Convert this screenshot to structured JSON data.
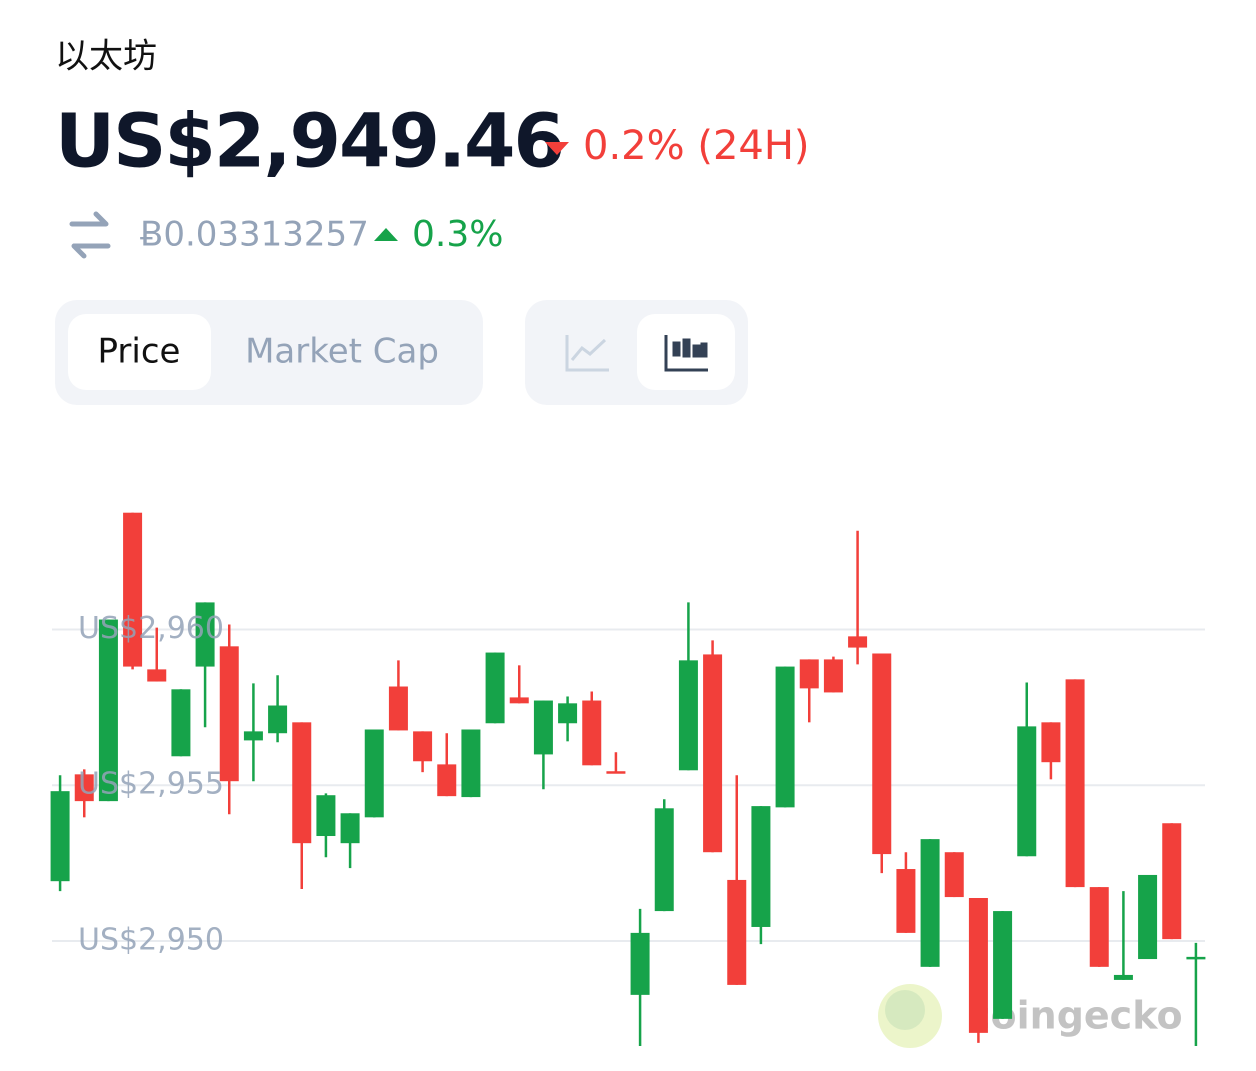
{
  "header": {
    "name": "以太坊",
    "price": "US$2,949.46",
    "change": "0.2% (24H)",
    "btc_price": "Ƀ0.03313257",
    "btc_change": "0.3%"
  },
  "tabs": {
    "metric": [
      "Price",
      "Market Cap"
    ]
  },
  "watermark": "coingecko",
  "chart_data": {
    "type": "candlestick",
    "up_color": "#16a34a",
    "down_color": "#f23f3a",
    "grid": true,
    "ylim": [
      2946.5,
      2964.8
    ],
    "yticks": [
      {
        "value": 2950,
        "label": "US$2,950"
      },
      {
        "value": 2955,
        "label": "US$2,955"
      },
      {
        "value": 2960,
        "label": "US$2,960"
      }
    ],
    "open": [
      2951.92,
      2955.35,
      2954.49,
      2963.75,
      2958.72,
      2955.93,
      2958.81,
      2959.46,
      2956.44,
      2956.67,
      2957.02,
      2953.37,
      2953.14,
      2953.97,
      2958.17,
      2956.73,
      2955.67,
      2954.62,
      2956.99,
      2957.82,
      2955.99,
      2956.99,
      2957.72,
      2955.45,
      2948.27,
      2950.96,
      2955.48,
      2959.2,
      2951.96,
      2950.45,
      2954.29,
      2959.04,
      2959.04,
      2959.78,
      2959.23,
      2952.31,
      2949.17,
      2952.85,
      2951.38,
      2947.5,
      2952.72,
      2957.02,
      2958.4,
      2951.73,
      2948.75,
      2949.42,
      2953.78,
      2949.42
    ],
    "high": [
      2955.32,
      2955.51,
      2960.32,
      2963.75,
      2960.06,
      2958.08,
      2960.87,
      2960.16,
      2958.27,
      2958.53,
      2957.02,
      2954.74,
      2954.1,
      2956.79,
      2959.01,
      2956.73,
      2956.67,
      2956.79,
      2959.26,
      2958.85,
      2957.72,
      2957.85,
      2958.01,
      2956.06,
      2951.03,
      2954.55,
      2960.87,
      2959.65,
      2955.32,
      2954.33,
      2958.81,
      2959.04,
      2959.13,
      2963.17,
      2959.23,
      2952.85,
      2953.27,
      2952.85,
      2951.38,
      2950.96,
      2958.3,
      2957.02,
      2958.4,
      2951.73,
      2951.6,
      2952.12,
      2953.78,
      2949.94
    ],
    "low": [
      2951.6,
      2953.97,
      2954.49,
      2958.72,
      2958.33,
      2955.93,
      2956.86,
      2954.07,
      2955.13,
      2956.38,
      2951.67,
      2952.69,
      2952.34,
      2953.97,
      2956.76,
      2955.42,
      2954.65,
      2954.62,
      2956.99,
      2957.63,
      2954.87,
      2956.41,
      2955.64,
      2955.38,
      2946.63,
      2950.96,
      2955.48,
      2952.85,
      2948.59,
      2949.9,
      2954.29,
      2957.02,
      2957.98,
      2958.88,
      2952.18,
      2950.26,
      2949.17,
      2951.41,
      2946.73,
      2947.5,
      2952.72,
      2955.19,
      2951.73,
      2949.17,
      2948.75,
      2949.42,
      2950.06,
      2946.63
    ],
    "close": [
      2954.81,
      2954.49,
      2960.32,
      2958.81,
      2958.33,
      2958.08,
      2960.87,
      2955.13,
      2956.73,
      2957.56,
      2953.14,
      2954.68,
      2954.1,
      2956.79,
      2956.76,
      2955.77,
      2954.65,
      2956.79,
      2959.26,
      2957.63,
      2957.72,
      2957.63,
      2955.64,
      2955.38,
      2950.26,
      2954.26,
      2959.01,
      2952.85,
      2948.59,
      2954.33,
      2958.81,
      2958.11,
      2957.98,
      2959.42,
      2952.79,
      2950.26,
      2953.27,
      2951.41,
      2947.05,
      2950.96,
      2956.89,
      2955.74,
      2951.73,
      2949.17,
      2948.91,
      2952.12,
      2950.06,
      2949.49
    ]
  }
}
